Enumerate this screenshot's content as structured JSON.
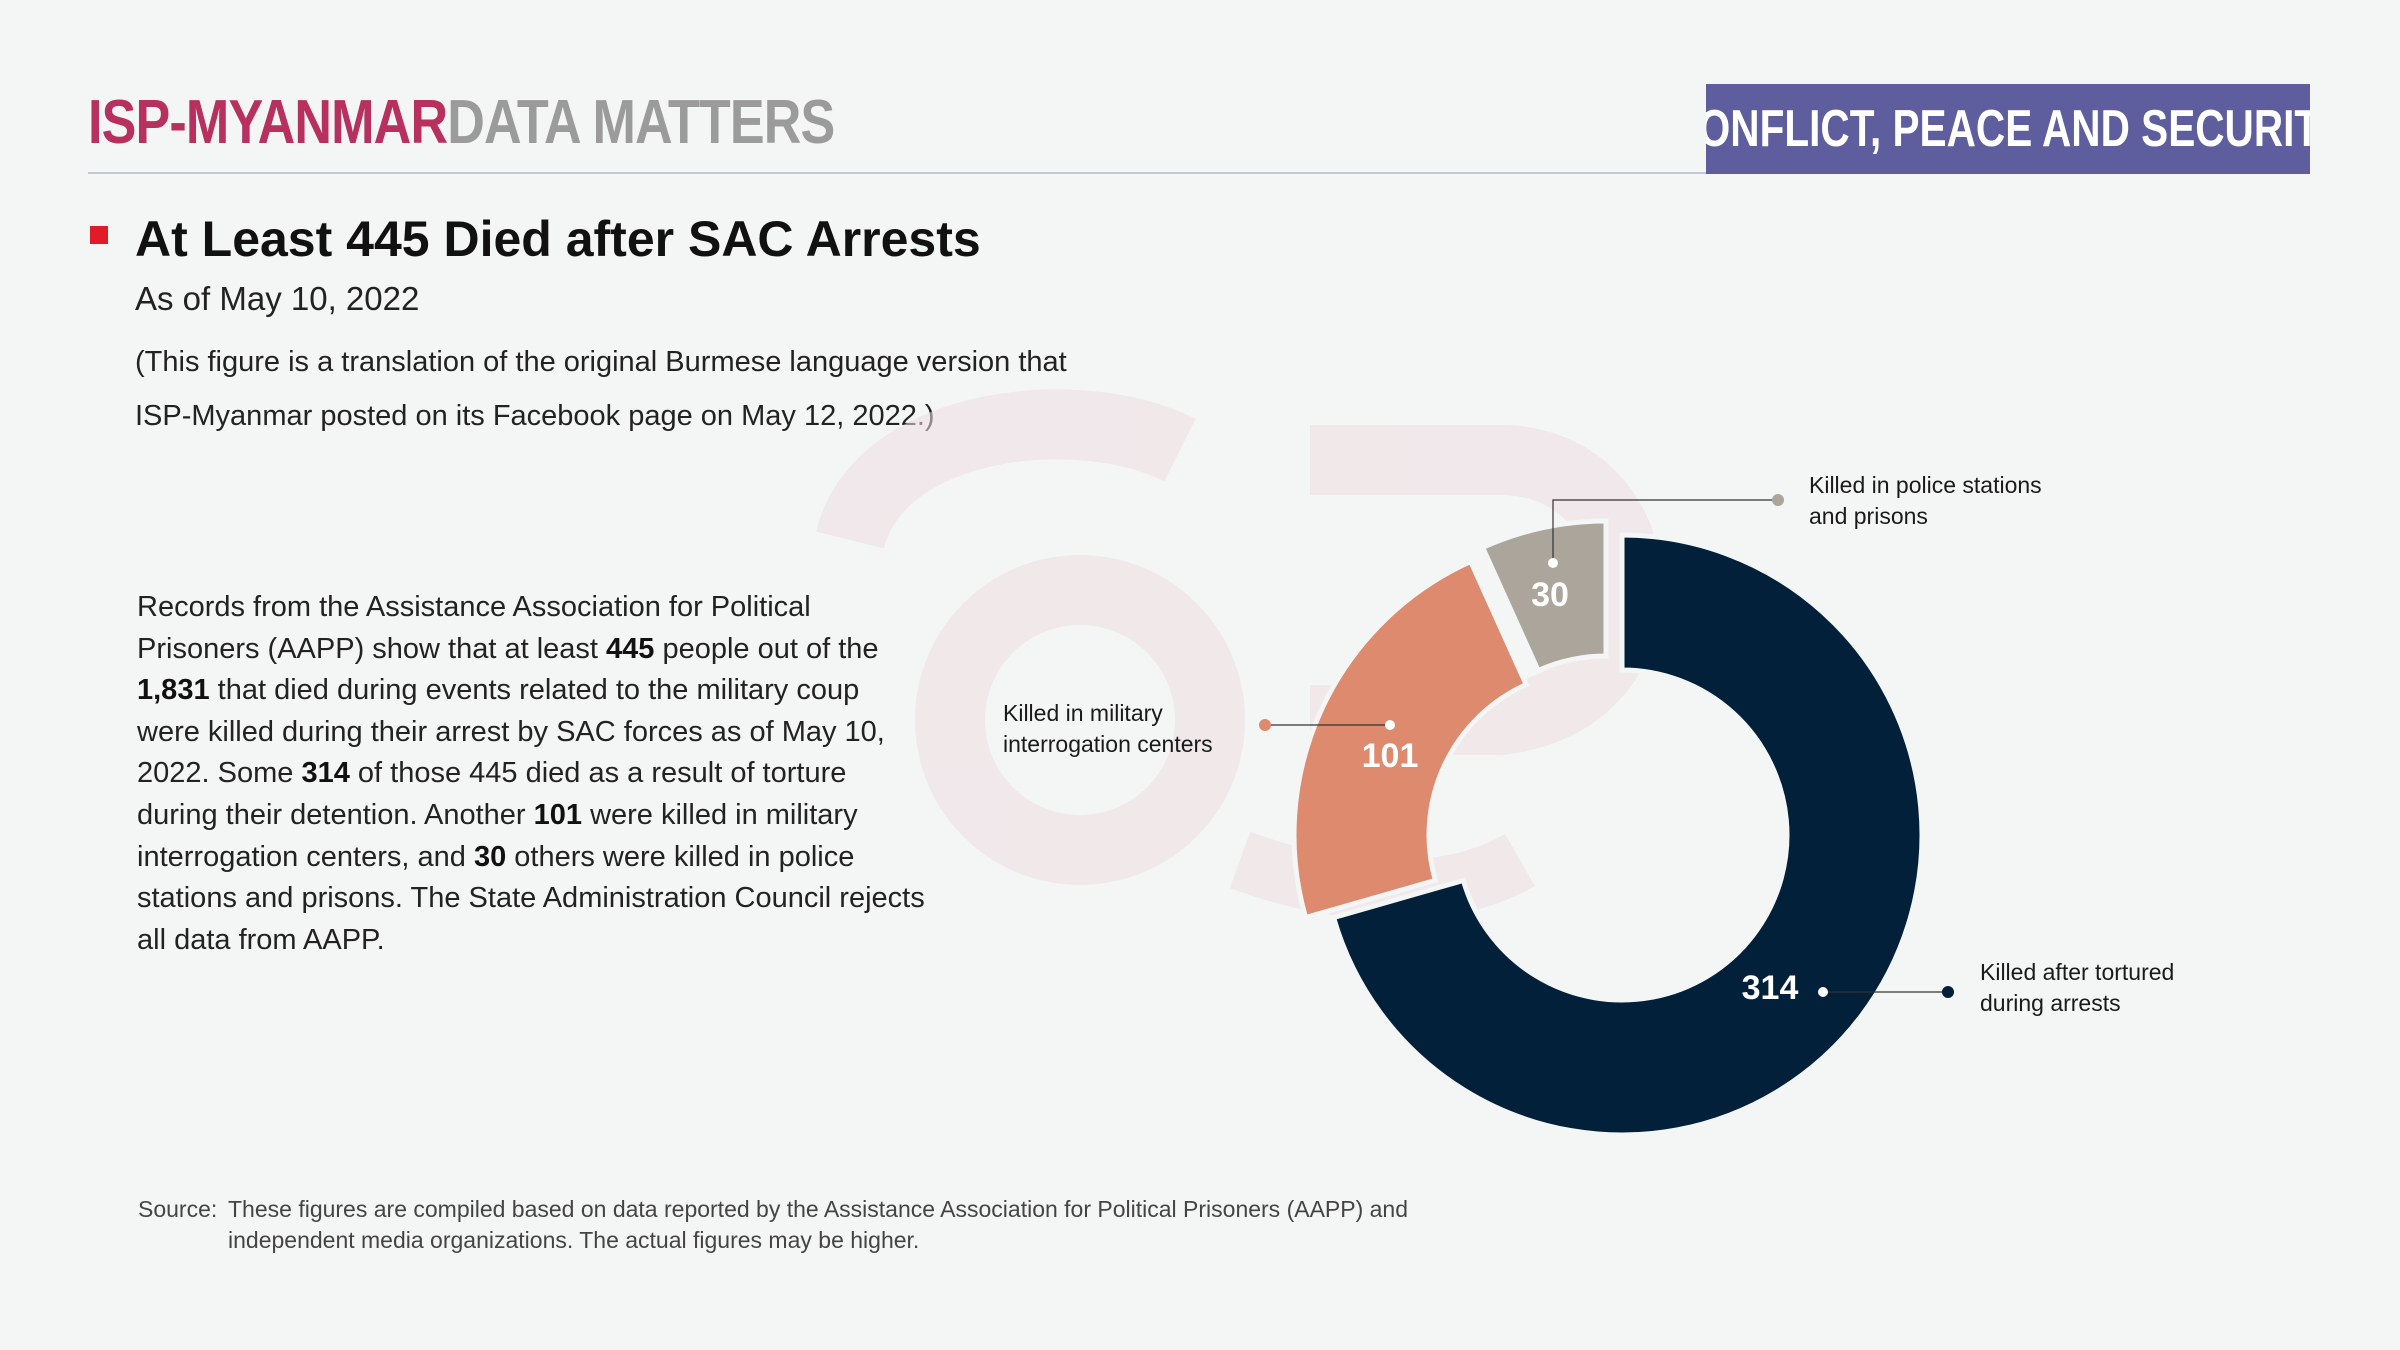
{
  "header": {
    "brand_primary": "ISP-MYANMAR",
    "brand_secondary": "DATA MATTERS",
    "category": "CONFLICT, PEACE AND SECURITY"
  },
  "title": "At Least 445 Died after SAC Arrests",
  "subtitle": "As of May 10, 2022",
  "note_line1": "(This figure is a translation of the original Burmese language version that",
  "note_line2": "ISP-Myanmar posted on its Facebook page on May 12, 2022.)",
  "body": {
    "parts": [
      "Records from the Assistance Association for Political Prisoners (AAPP) show that at least ",
      "445",
      " people out of the ",
      "1,831",
      " that died during events related to the military coup were killed during their arrest by SAC forces as of May 10, 2022. Some ",
      "314",
      " of  those 445 died as a result of torture during their detention. Another ",
      "101",
      " were killed in military interrogation centers, and ",
      "30",
      " others were killed in police stations and prisons. The State Administration Council rejects all data from AAPP."
    ]
  },
  "source": {
    "label": "Source:",
    "line1": "These figures are compiled based on data reported by the Assistance Association for Political Prisoners (AAPP) and",
    "line2": "independent media organizations. The actual figures may be higher."
  },
  "colors": {
    "tortured": "#03203a",
    "military": "#dd8a6e",
    "police": "#aba59b",
    "brand": "#b8305e",
    "banner": "#5e5d9e"
  },
  "chart_data": {
    "type": "pie",
    "title": "At Least 445 Died after SAC Arrests",
    "slices": [
      {
        "label_lines": [
          "Killed after tortured",
          "during arrests"
        ],
        "value": 314,
        "color": "#03203a"
      },
      {
        "label_lines": [
          "Killed in military",
          "interrogation centers"
        ],
        "value": 101,
        "color": "#dd8a6e"
      },
      {
        "label_lines": [
          "Killed in police stations",
          "and prisons"
        ],
        "value": 30,
        "color": "#aba59b"
      }
    ],
    "total": 445,
    "donut": true
  }
}
